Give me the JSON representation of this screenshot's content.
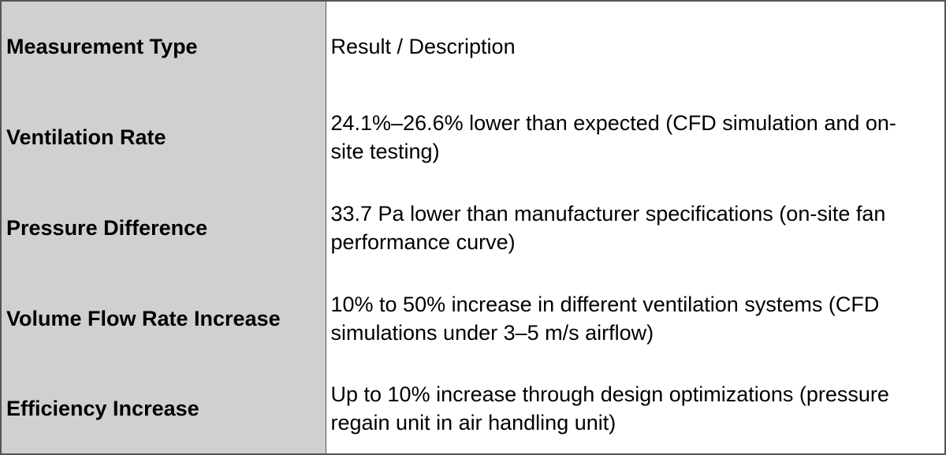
{
  "table": {
    "rows": [
      [
        "Measurement Type",
        "Result / Description"
      ],
      [
        "Ventilation Rate",
        "24.1%–26.6% lower than expected (CFD simulation and on-site testing)"
      ],
      [
        "Pressure Difference",
        "33.7 Pa lower than manufacturer specifications (on-site fan performance curve)"
      ],
      [
        "Volume Flow Rate Increase",
        "10% to 50% increase in different ventilation systems (CFD simulations under 3–5 m/s airflow)"
      ],
      [
        "Efficiency Increase",
        "Up to 10% increase through design optimizations (pressure regain unit in air handling unit)"
      ]
    ]
  }
}
